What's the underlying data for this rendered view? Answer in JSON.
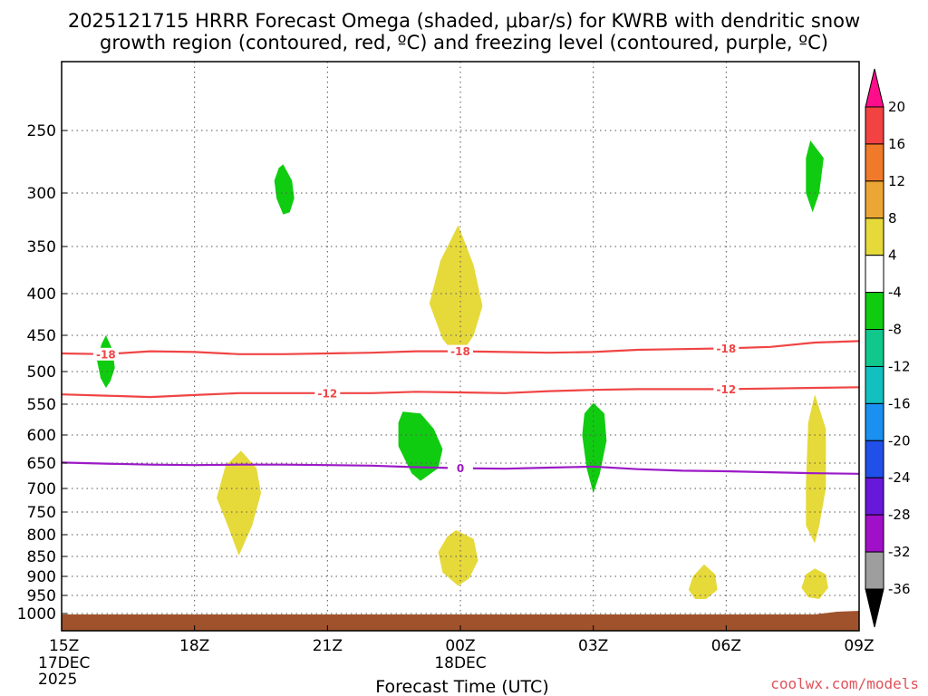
{
  "chart_data": {
    "type": "time-height",
    "title_line1": "2025121715 HRRR Forecast Omega (shaded, μbar/s) for KWRB with dendritic snow",
    "title_line2": "growth region (contoured, red, ºC) and freezing level (contoured, purple, ºC)",
    "xlabel": "Forecast Time (UTC)",
    "ylabel": "",
    "credit": "coolwx.com/models",
    "x_hours": [
      0,
      3,
      6,
      9,
      12,
      15,
      18
    ],
    "x_tick_labels": [
      "15Z",
      "18Z",
      "21Z",
      "00Z",
      "03Z",
      "06Z",
      "09Z"
    ],
    "x_sub_labels": [
      {
        "hour": 0,
        "lines": [
          "17DEC",
          "2025"
        ]
      },
      {
        "hour": 9,
        "lines": [
          "18DEC"
        ]
      }
    ],
    "y_levels_hpa": [
      250,
      300,
      350,
      400,
      450,
      500,
      550,
      600,
      650,
      700,
      750,
      800,
      850,
      900,
      950,
      1000
    ],
    "xlim": [
      0,
      18
    ],
    "ylim": [
      200,
      1010
    ],
    "colorbar": {
      "ticks": [
        "20",
        "16",
        "12",
        "8",
        "4",
        "-4",
        "-8",
        "-12",
        "-16",
        "-20",
        "-24",
        "-28",
        "-32",
        "-36"
      ],
      "colors": [
        "#ff0d8a",
        "#f24242",
        "#f07a2a",
        "#eba635",
        "#e6d93a",
        "#ffffff",
        "#10cc10",
        "#10c88c",
        "#13c0c0",
        "#1a90f0",
        "#2050e8",
        "#6818d8",
        "#a010c8",
        "#9e9e9e",
        "#000000"
      ]
    },
    "contours": [
      {
        "name": "-18",
        "color": "#f04545",
        "label": "-18",
        "points": [
          [
            0,
            475
          ],
          [
            1,
            476
          ],
          [
            2,
            472
          ],
          [
            3,
            473
          ],
          [
            4,
            476
          ],
          [
            5,
            476
          ],
          [
            6,
            475
          ],
          [
            7,
            474
          ],
          [
            8,
            472
          ],
          [
            9,
            472
          ],
          [
            10,
            473
          ],
          [
            11,
            474
          ],
          [
            12,
            473
          ],
          [
            13,
            470
          ],
          [
            14,
            469
          ],
          [
            15,
            468
          ],
          [
            16,
            466
          ],
          [
            17,
            460
          ],
          [
            18,
            458
          ]
        ],
        "label_hours": [
          1,
          9,
          15
        ]
      },
      {
        "name": "-12",
        "color": "#f04545",
        "label": "-12",
        "points": [
          [
            0,
            535
          ],
          [
            1,
            537
          ],
          [
            2,
            539
          ],
          [
            3,
            536
          ],
          [
            4,
            533
          ],
          [
            5,
            533
          ],
          [
            6,
            533
          ],
          [
            7,
            533
          ],
          [
            8,
            531
          ],
          [
            9,
            532
          ],
          [
            10,
            533
          ],
          [
            11,
            530
          ],
          [
            12,
            528
          ],
          [
            13,
            527
          ],
          [
            14,
            527
          ],
          [
            15,
            527
          ],
          [
            16,
            526
          ],
          [
            17,
            525
          ],
          [
            18,
            524
          ]
        ],
        "label_hours": [
          6,
          15
        ]
      },
      {
        "name": "0",
        "color": "#9b1ac6",
        "label": "0",
        "points": [
          [
            0,
            649
          ],
          [
            1,
            651
          ],
          [
            2,
            653
          ],
          [
            3,
            654
          ],
          [
            4,
            653
          ],
          [
            5,
            653
          ],
          [
            6,
            654
          ],
          [
            7,
            655
          ],
          [
            8,
            658
          ],
          [
            9,
            660
          ],
          [
            10,
            661
          ],
          [
            11,
            659
          ],
          [
            12,
            657
          ],
          [
            13,
            662
          ],
          [
            14,
            665
          ],
          [
            15,
            666
          ],
          [
            16,
            668
          ],
          [
            17,
            670
          ],
          [
            18,
            671
          ]
        ],
        "label_hours": [
          9
        ]
      }
    ],
    "omega_regions": [
      {
        "sign": "negative",
        "range": "-4 to -8",
        "color": "#10cc10",
        "center": [
          1,
          490
        ],
        "points": [
          [
            1,
            450
          ],
          [
            1.15,
            470
          ],
          [
            1.2,
            495
          ],
          [
            1.1,
            515
          ],
          [
            1,
            525
          ],
          [
            0.88,
            510
          ],
          [
            0.8,
            485
          ],
          [
            0.9,
            462
          ]
        ]
      },
      {
        "sign": "negative",
        "range": "-4 to -8",
        "color": "#10cc10",
        "center": [
          5,
          300
        ],
        "points": [
          [
            5,
            277
          ],
          [
            5.2,
            290
          ],
          [
            5.25,
            305
          ],
          [
            5.15,
            318
          ],
          [
            5,
            320
          ],
          [
            4.85,
            305
          ],
          [
            4.8,
            290
          ],
          [
            4.9,
            280
          ]
        ]
      },
      {
        "sign": "negative",
        "range": "-4 to -8",
        "color": "#10cc10",
        "center": [
          8.2,
          620
        ],
        "points": [
          [
            7.7,
            562
          ],
          [
            8.1,
            565
          ],
          [
            8.4,
            590
          ],
          [
            8.6,
            625
          ],
          [
            8.5,
            660
          ],
          [
            8.1,
            685
          ],
          [
            7.9,
            670
          ],
          [
            7.6,
            620
          ],
          [
            7.6,
            580
          ]
        ]
      },
      {
        "sign": "negative",
        "range": "-4 to -8",
        "color": "#10cc10",
        "center": [
          12,
          620
        ],
        "points": [
          [
            12,
            548
          ],
          [
            12.25,
            565
          ],
          [
            12.3,
            610
          ],
          [
            12.15,
            670
          ],
          [
            12,
            710
          ],
          [
            11.85,
            660
          ],
          [
            11.75,
            600
          ],
          [
            11.8,
            565
          ]
        ]
      },
      {
        "sign": "negative",
        "range": "-4 to -8",
        "color": "#10cc10",
        "center": [
          16.9,
          280
        ],
        "points": [
          [
            16.9,
            258
          ],
          [
            17.2,
            272
          ],
          [
            17.1,
            300
          ],
          [
            16.95,
            318
          ],
          [
            16.8,
            300
          ],
          [
            16.8,
            272
          ]
        ]
      },
      {
        "sign": "positive",
        "range": "4 to 8",
        "color": "#e6d93a",
        "center": [
          9,
          405
        ],
        "points": [
          [
            8.95,
            330
          ],
          [
            9.3,
            370
          ],
          [
            9.5,
            415
          ],
          [
            9.3,
            450
          ],
          [
            8.95,
            482
          ],
          [
            8.6,
            455
          ],
          [
            8.3,
            412
          ],
          [
            8.55,
            365
          ]
        ]
      },
      {
        "sign": "positive",
        "range": "4 to 8",
        "color": "#e6d93a",
        "center": [
          4,
          730
        ],
        "points": [
          [
            4.05,
            628
          ],
          [
            4.4,
            660
          ],
          [
            4.5,
            710
          ],
          [
            4.3,
            780
          ],
          [
            4,
            848
          ],
          [
            3.75,
            780
          ],
          [
            3.5,
            720
          ],
          [
            3.7,
            655
          ]
        ]
      },
      {
        "sign": "positive",
        "range": "4 to 8",
        "color": "#e6d93a",
        "center": [
          9,
          860
        ],
        "points": [
          [
            8.9,
            790
          ],
          [
            9.3,
            810
          ],
          [
            9.4,
            860
          ],
          [
            9.2,
            905
          ],
          [
            8.95,
            925
          ],
          [
            8.6,
            890
          ],
          [
            8.5,
            840
          ],
          [
            8.7,
            805
          ]
        ]
      },
      {
        "sign": "positive",
        "range": "4 to 8",
        "color": "#e6d93a",
        "center": [
          14.5,
          935
        ],
        "points": [
          [
            14.5,
            870
          ],
          [
            14.75,
            895
          ],
          [
            14.8,
            935
          ],
          [
            14.55,
            960
          ],
          [
            14.3,
            960
          ],
          [
            14.15,
            935
          ],
          [
            14.25,
            900
          ]
        ]
      },
      {
        "sign": "positive",
        "range": "4 to 8",
        "color": "#e6d93a",
        "center": [
          17,
          660
        ],
        "points": [
          [
            17,
            535
          ],
          [
            17.25,
            590
          ],
          [
            17.25,
            700
          ],
          [
            17.1,
            780
          ],
          [
            17,
            820
          ],
          [
            16.8,
            780
          ],
          [
            16.8,
            690
          ],
          [
            16.85,
            580
          ]
        ]
      },
      {
        "sign": "positive",
        "range": "4 to 8",
        "color": "#e6d93a",
        "center": [
          17,
          920
        ],
        "points": [
          [
            17,
            880
          ],
          [
            17.25,
            895
          ],
          [
            17.3,
            930
          ],
          [
            17.1,
            960
          ],
          [
            16.85,
            955
          ],
          [
            16.7,
            930
          ],
          [
            16.8,
            895
          ]
        ]
      }
    ]
  }
}
